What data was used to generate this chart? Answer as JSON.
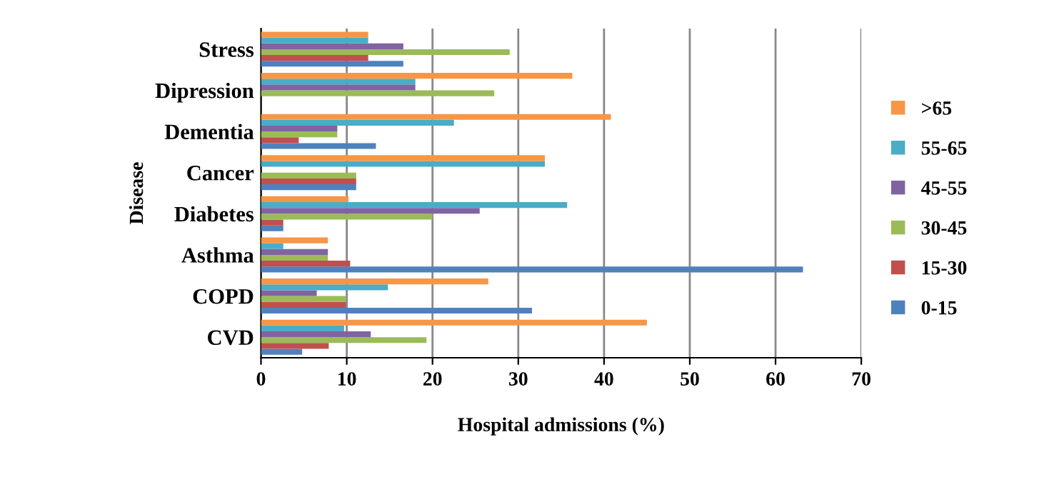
{
  "chart_data": {
    "type": "bar",
    "orientation": "horizontal",
    "xlabel": "Hospital admissions (%)",
    "ylabel": "Disease",
    "categories": [
      "Stress",
      "Dipression",
      "Dementia",
      "Cancer",
      "Diabetes",
      "Asthma",
      "COPD",
      "CVD"
    ],
    "series": [
      {
        "name": "0-15",
        "color": "#4f81bd",
        "values": [
          16.6,
          null,
          13.4,
          11.1,
          2.6,
          63.2,
          31.6,
          4.8
        ]
      },
      {
        "name": "15-30",
        "color": "#c0504d",
        "values": [
          12.5,
          null,
          4.4,
          11.1,
          2.6,
          10.4,
          9.9,
          7.9
        ]
      },
      {
        "name": "30-45",
        "color": "#9bbb59",
        "values": [
          29,
          27.2,
          8.9,
          11.1,
          20,
          7.8,
          9.9,
          19.3
        ]
      },
      {
        "name": "45-55",
        "color": "#8064a2",
        "values": [
          16.6,
          18,
          8.9,
          null,
          25.5,
          7.8,
          6.5,
          12.8
        ]
      },
      {
        "name": "55-65",
        "color": "#4bacc6",
        "values": [
          12.5,
          18,
          22.5,
          33.1,
          35.7,
          2.6,
          14.8,
          9.7
        ]
      },
      {
        "name": ">65",
        "color": "#f79646",
        "values": [
          12.5,
          36.3,
          40.8,
          33.1,
          10.2,
          7.8,
          26.5,
          45
        ]
      }
    ],
    "xlim": [
      0,
      70
    ],
    "xticks": [
      0,
      10,
      20,
      30,
      40,
      50,
      60,
      70
    ],
    "grid": "x",
    "legend": "right"
  }
}
